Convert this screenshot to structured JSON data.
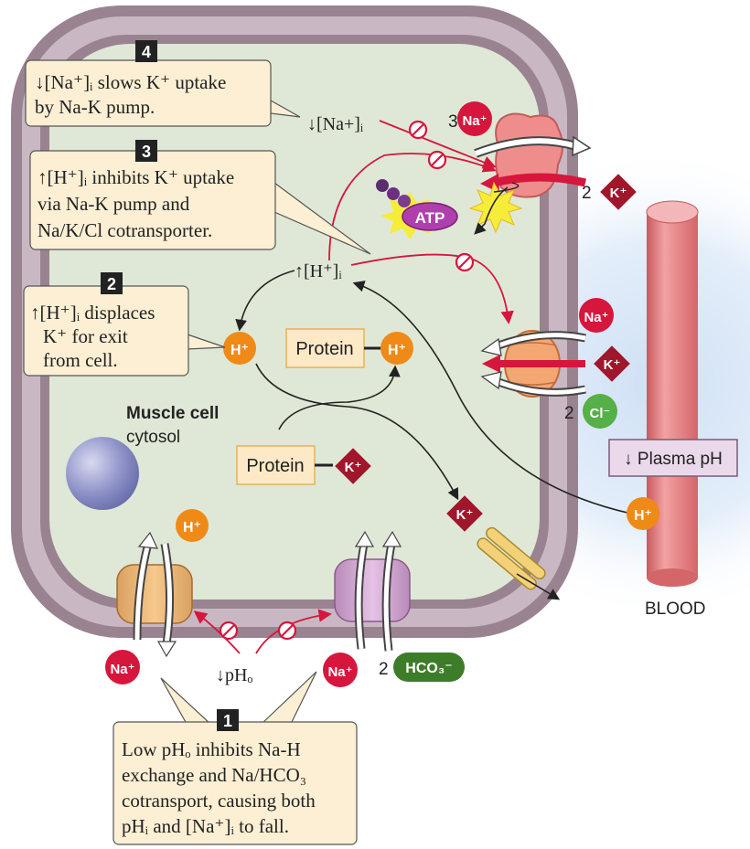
{
  "callouts": {
    "c1": {
      "number": "1",
      "lines": [
        "Low pHₒ inhibits Na-H",
        "exchange and Na/HCO₃",
        "cotransport, causing both",
        "pHᵢ and [Na⁺]ᵢ to fall."
      ]
    },
    "c2": {
      "number": "2",
      "lines": [
        "↑[H⁺]ᵢ displaces",
        "K⁺ for exit",
        "from cell."
      ]
    },
    "c3": {
      "number": "3",
      "lines": [
        "↑[H⁺]ᵢ inhibits K⁺ uptake",
        "via Na-K pump and",
        "Na/K/Cl cotransporter."
      ]
    },
    "c4": {
      "number": "4",
      "lines": [
        "↓[Na⁺]ᵢ slows K⁺ uptake",
        "by Na-K pump."
      ]
    }
  },
  "labels": {
    "na_i_dec": "↓[Na+]ᵢ",
    "h_i_inc": "↑[H⁺]ᵢ",
    "ph_o_dec": "↓pHₒ",
    "plasma_ph": "↓ Plasma pH",
    "blood": "BLOOD",
    "muscle_cell": "Muscle cell",
    "cytosol": "cytosol",
    "protein1": "Protein",
    "protein2": "Protein",
    "atp": "ATP"
  },
  "ions": {
    "na": "Na⁺",
    "k": "K⁺",
    "h": "H⁺",
    "cl": "Cl⁻",
    "hco3": "HCO₃⁻"
  },
  "stoich": {
    "pump_na": "3",
    "pump_k": "2",
    "cotrans_cl": "2",
    "hco3": "2"
  },
  "colors": {
    "membrane": "#9a8390",
    "cytosol": "#dfe8d6",
    "na": "#d6163c",
    "k": "#a0162b",
    "h": "#ef8a17",
    "cl": "#55b047",
    "hco3": "#3d7d2a",
    "callout": "#fcefd4",
    "vessel": "#e6787b"
  }
}
